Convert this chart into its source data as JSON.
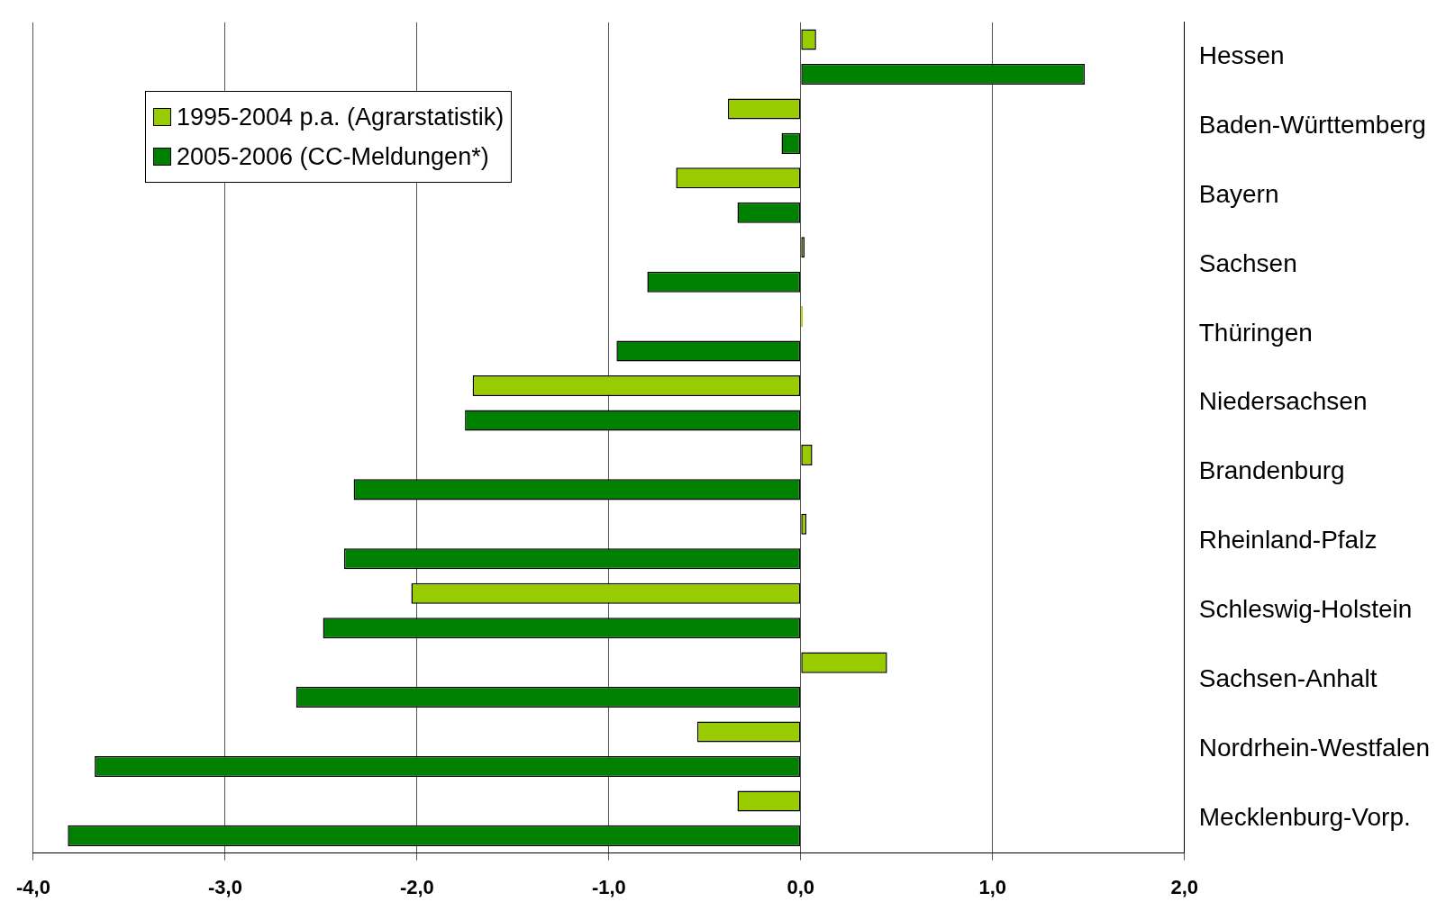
{
  "chart_data": {
    "type": "bar",
    "orientation": "horizontal",
    "categories": [
      "Hessen",
      "Baden-Württemberg",
      "Bayern",
      "Sachsen",
      "Thüringen",
      "Niedersachsen",
      "Brandenburg",
      "Rheinland-Pfalz",
      "Schleswig-Holstein",
      "Sachsen-Anhalt",
      "Nordrhein-Westfalen",
      "Mecklenburg-Vorp."
    ],
    "series": [
      {
        "name": "1995-2004 p.a.  (Agrarstatistik)",
        "color": "#99cc00",
        "values": [
          0.08,
          -0.38,
          -0.65,
          0.02,
          0.01,
          -1.71,
          0.06,
          0.03,
          -2.03,
          0.45,
          -0.54,
          -0.33
        ]
      },
      {
        "name": "2005-2006 (CC-Meldungen*)",
        "color": "#008000",
        "values": [
          1.48,
          -0.1,
          -0.33,
          -0.8,
          -0.96,
          -1.75,
          -2.33,
          -2.38,
          -2.49,
          -2.63,
          -3.68,
          -3.82
        ]
      }
    ],
    "xlim": [
      -4,
      2
    ],
    "xticks": [
      {
        "value": -4,
        "label": "-4,0"
      },
      {
        "value": -3,
        "label": "-3,0"
      },
      {
        "value": -2,
        "label": "-2,0"
      },
      {
        "value": -1,
        "label": "-1,0"
      },
      {
        "value": 0,
        "label": "0,0"
      },
      {
        "value": 1,
        "label": "1,0"
      },
      {
        "value": 2,
        "label": "2,0"
      }
    ],
    "grid": "x",
    "legend": "top left"
  }
}
